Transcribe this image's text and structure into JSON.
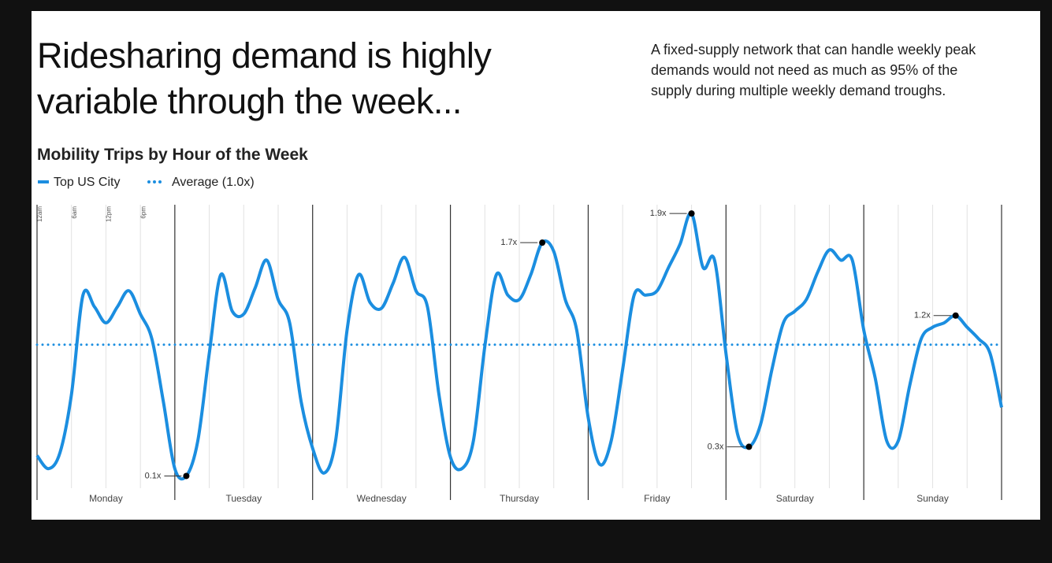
{
  "chart_data": {
    "type": "line",
    "title": "Ridesharing demand is highly variable through the week...",
    "subtitle": "A fixed-supply network that can handle weekly peak demands would not need as much as 95% of the supply during multiple weekly demand troughs.",
    "chart_title": "Mobility Trips by Hour of the Week",
    "x": [
      0,
      2,
      4,
      6,
      8,
      10,
      12,
      14,
      16,
      18,
      20,
      22,
      24,
      26,
      28,
      30,
      32,
      34,
      36,
      38,
      40,
      42,
      44,
      46,
      48,
      50,
      52,
      54,
      56,
      58,
      60,
      62,
      64,
      66,
      68,
      70,
      72,
      74,
      76,
      78,
      80,
      82,
      84,
      86,
      88,
      90,
      92,
      94,
      96,
      98,
      100,
      102,
      104,
      106,
      108,
      110,
      112,
      114,
      116,
      118,
      120,
      122,
      124,
      126,
      128,
      130,
      132,
      134,
      136,
      138,
      140,
      142,
      144,
      146,
      148,
      150,
      152,
      154,
      156,
      158,
      160,
      162,
      164,
      166,
      168
    ],
    "series": [
      {
        "name": "Top US City",
        "color": "#1b8ee0",
        "values": [
          0.24,
          0.15,
          0.26,
          0.66,
          1.34,
          1.26,
          1.15,
          1.26,
          1.37,
          1.21,
          1.04,
          0.61,
          0.15,
          0.1,
          0.34,
          0.94,
          1.48,
          1.23,
          1.21,
          1.39,
          1.58,
          1.31,
          1.15,
          0.61,
          0.29,
          0.12,
          0.34,
          1.1,
          1.48,
          1.29,
          1.25,
          1.42,
          1.6,
          1.37,
          1.26,
          0.66,
          0.23,
          0.15,
          0.34,
          0.99,
          1.48,
          1.34,
          1.31,
          1.48,
          1.7,
          1.64,
          1.31,
          1.1,
          0.5,
          0.18,
          0.34,
          0.83,
          1.34,
          1.34,
          1.37,
          1.53,
          1.69,
          1.9,
          1.53,
          1.58,
          0.94,
          0.39,
          0.3,
          0.45,
          0.83,
          1.15,
          1.23,
          1.31,
          1.5,
          1.65,
          1.58,
          1.58,
          1.1,
          0.77,
          0.34,
          0.34,
          0.72,
          1.04,
          1.12,
          1.15,
          1.2,
          1.12,
          1.04,
          0.94,
          0.57
        ]
      }
    ],
    "reference_line": {
      "value": 1,
      "label": "Average (1.0x)"
    },
    "xlim": [
      0,
      168
    ],
    "ylim": [
      -0.065,
      1.96
    ],
    "xticks": [
      0,
      24,
      48,
      72,
      96,
      120,
      144,
      168
    ],
    "categories": [
      "Monday",
      "Tuesday",
      "Wednesday",
      "Thursday",
      "Friday",
      "Saturday",
      "Sunday"
    ],
    "hour_ticks": [
      {
        "value": 0,
        "label": "12am"
      },
      {
        "value": 6,
        "label": "6am"
      },
      {
        "value": 12,
        "label": "12pm"
      },
      {
        "value": 18,
        "label": "6pm"
      }
    ],
    "minor_grid_step": 6,
    "annotations": [
      {
        "x": 26,
        "y": 0.1,
        "label": "0.1x"
      },
      {
        "x": 88,
        "y": 1.7,
        "label": "1.7x"
      },
      {
        "x": 114,
        "y": 1.9,
        "label": "1.9x"
      },
      {
        "x": 124,
        "y": 0.3,
        "label": "0.3x"
      },
      {
        "x": 160,
        "y": 1.2,
        "label": "1.2x"
      }
    ]
  }
}
